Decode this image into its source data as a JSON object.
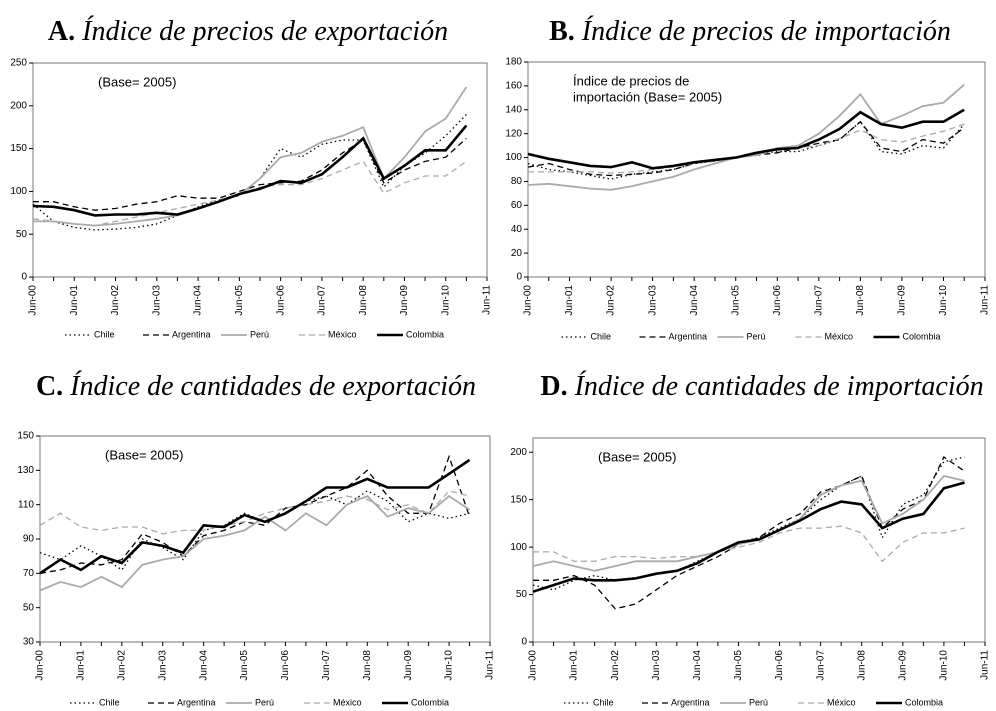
{
  "chart_data": [
    {
      "type": "line",
      "label": "A.",
      "title": "Índice de precios de exportación",
      "annotation": [
        "(Base= 2005)"
      ],
      "categories": [
        "Jun-00",
        null,
        "Jun-01",
        null,
        "Jun-02",
        null,
        "Jun-03",
        null,
        "Jun-04",
        null,
        "Jun-05",
        null,
        "Jun-06",
        null,
        "Jun-07",
        null,
        "Jun-08",
        null,
        "Jun-09",
        null,
        "Jun-10",
        null,
        "Jun-11"
      ],
      "ylim": [
        0,
        250
      ],
      "yticks": [
        0,
        50,
        100,
        150,
        200,
        250
      ],
      "legend": "bottom",
      "series": [
        {
          "name": "Chile",
          "color": "#000000",
          "linestyle": "dotted",
          "values": [
            85,
            65,
            58,
            55,
            56,
            58,
            62,
            72,
            82,
            90,
            95,
            115,
            150,
            140,
            155,
            160,
            160,
            105,
            130,
            145,
            165,
            190,
            null
          ]
        },
        {
          "name": "Argentina",
          "color": "#000000",
          "linestyle": "dashed",
          "values": [
            88,
            88,
            82,
            78,
            80,
            85,
            88,
            95,
            92,
            92,
            100,
            108,
            110,
            112,
            125,
            145,
            160,
            110,
            125,
            135,
            140,
            162,
            null
          ]
        },
        {
          "name": "Perú",
          "color": "#aaaaaa",
          "linestyle": "solid",
          "values": [
            65,
            65,
            62,
            60,
            62,
            65,
            68,
            72,
            80,
            88,
            96,
            115,
            140,
            145,
            158,
            165,
            175,
            115,
            140,
            170,
            185,
            222,
            null
          ]
        },
        {
          "name": "México",
          "color": "#aaaaaa",
          "linestyle": "dashed",
          "values": [
            68,
            65,
            62,
            60,
            65,
            70,
            75,
            80,
            85,
            90,
            97,
            105,
            108,
            108,
            115,
            125,
            135,
            98,
            110,
            118,
            118,
            135,
            null
          ]
        },
        {
          "name": "Colombia",
          "color": "#000000",
          "linestyle": "bold",
          "values": [
            83,
            82,
            78,
            72,
            73,
            73,
            75,
            73,
            80,
            88,
            97,
            103,
            112,
            110,
            120,
            140,
            162,
            115,
            130,
            148,
            148,
            177,
            null
          ]
        }
      ]
    },
    {
      "type": "line",
      "label": "B.",
      "title": "Índice de precios de importación",
      "annotation": [
        "Índice de precios de",
        "importación (Base= 2005)"
      ],
      "categories": [
        "Jun-00",
        null,
        "Jun-01",
        null,
        "Jun-02",
        null,
        "Jun-03",
        null,
        "Jun-04",
        null,
        "Jun-05",
        null,
        "Jun-06",
        null,
        "Jun-07",
        null,
        "Jun-08",
        null,
        "Jun-09",
        null,
        "Jun-10",
        null,
        "Jun-11"
      ],
      "ylim": [
        0,
        180
      ],
      "yticks": [
        0,
        20,
        40,
        60,
        80,
        100,
        120,
        140,
        160,
        180
      ],
      "legend": "bottom",
      "series": [
        {
          "name": "Chile",
          "color": "#000000",
          "linestyle": "dotted",
          "values": [
            95,
            90,
            88,
            85,
            82,
            86,
            88,
            90,
            95,
            97,
            100,
            103,
            105,
            105,
            110,
            115,
            130,
            105,
            103,
            110,
            108,
            128,
            null
          ]
        },
        {
          "name": "Argentina",
          "color": "#000000",
          "linestyle": "dashed",
          "values": [
            92,
            95,
            90,
            86,
            85,
            86,
            87,
            90,
            95,
            98,
            100,
            102,
            104,
            108,
            112,
            115,
            130,
            108,
            105,
            115,
            112,
            125,
            null
          ]
        },
        {
          "name": "Perú",
          "color": "#aaaaaa",
          "linestyle": "solid",
          "values": [
            77,
            78,
            76,
            74,
            73,
            76,
            80,
            84,
            90,
            95,
            100,
            102,
            108,
            110,
            120,
            135,
            153,
            128,
            135,
            143,
            146,
            161,
            null
          ]
        },
        {
          "name": "México",
          "color": "#aaaaaa",
          "linestyle": "dashed",
          "values": [
            88,
            88,
            88,
            88,
            87,
            88,
            90,
            92,
            95,
            97,
            100,
            103,
            106,
            108,
            110,
            116,
            123,
            115,
            113,
            118,
            122,
            128,
            null
          ]
        },
        {
          "name": "Colombia",
          "color": "#000000",
          "linestyle": "bold",
          "values": [
            103,
            99,
            96,
            93,
            92,
            96,
            91,
            93,
            96,
            98,
            100,
            104,
            107,
            108,
            115,
            124,
            138,
            128,
            125,
            130,
            130,
            140,
            null
          ]
        }
      ]
    },
    {
      "type": "line",
      "label": "C.",
      "title": "Índice de cantidades de exportación",
      "annotation": [
        "(Base= 2005)"
      ],
      "categories": [
        "Jun-00",
        null,
        "Jun-01",
        null,
        "Jun-02",
        null,
        "Jun-03",
        null,
        "Jun-04",
        null,
        "Jun-05",
        null,
        "Jun-06",
        null,
        "Jun-07",
        null,
        "Jun-08",
        null,
        "Jun-09",
        null,
        "Jun-10",
        null,
        "Jun-11"
      ],
      "ylim": [
        30,
        150
      ],
      "yticks": [
        30,
        50,
        70,
        90,
        110,
        130,
        150
      ],
      "legend": "bottom",
      "series": [
        {
          "name": "Chile",
          "color": "#000000",
          "linestyle": "dotted",
          "values": [
            82,
            78,
            86,
            80,
            72,
            90,
            85,
            78,
            95,
            98,
            105,
            100,
            105,
            112,
            115,
            110,
            118,
            112,
            100,
            105,
            102,
            105,
            null
          ]
        },
        {
          "name": "Argentina",
          "color": "#000000",
          "linestyle": "dashed",
          "values": [
            70,
            72,
            76,
            75,
            78,
            93,
            88,
            80,
            92,
            95,
            100,
            98,
            108,
            110,
            115,
            120,
            130,
            115,
            105,
            105,
            138,
            103,
            null
          ]
        },
        {
          "name": "Perú",
          "color": "#aaaaaa",
          "linestyle": "solid",
          "values": [
            60,
            65,
            62,
            68,
            62,
            75,
            78,
            80,
            90,
            92,
            95,
            103,
            95,
            105,
            98,
            110,
            115,
            103,
            108,
            105,
            115,
            107,
            null
          ]
        },
        {
          "name": "México",
          "color": "#aaaaaa",
          "linestyle": "dashed",
          "values": [
            98,
            105,
            97,
            95,
            97,
            97,
            93,
            95,
            95,
            98,
            100,
            105,
            108,
            110,
            112,
            115,
            113,
            107,
            110,
            105,
            118,
            115,
            null
          ]
        },
        {
          "name": "Colombia",
          "color": "#000000",
          "linestyle": "bold",
          "values": [
            70,
            78,
            72,
            80,
            76,
            88,
            86,
            82,
            98,
            97,
            104,
            100,
            105,
            112,
            120,
            120,
            125,
            120,
            120,
            120,
            128,
            136,
            null
          ]
        }
      ]
    },
    {
      "type": "line",
      "label": "D.",
      "title": "Índice de cantidades de importación",
      "annotation": [
        "(Base= 2005)"
      ],
      "categories": [
        "Jun-00",
        null,
        "Jun-01",
        null,
        "Jun-02",
        null,
        "Jun-03",
        null,
        "Jun-04",
        null,
        "Jun-05",
        null,
        "Jun-06",
        null,
        "Jun-07",
        null,
        "Jun-08",
        null,
        "Jun-09",
        null,
        "Jun-10",
        null,
        "Jun-11"
      ],
      "ylim": [
        0,
        215
      ],
      "yticks": [
        0,
        50,
        100,
        150,
        200
      ],
      "legend": "bottom",
      "series": [
        {
          "name": "Chile",
          "color": "#000000",
          "linestyle": "dotted",
          "values": [
            60,
            55,
            65,
            70,
            65,
            68,
            72,
            75,
            85,
            95,
            105,
            110,
            120,
            130,
            150,
            165,
            175,
            110,
            145,
            155,
            190,
            195,
            null
          ]
        },
        {
          "name": "Argentina",
          "color": "#000000",
          "linestyle": "dashed",
          "values": [
            65,
            65,
            70,
            60,
            35,
            40,
            55,
            70,
            80,
            90,
            103,
            110,
            125,
            135,
            158,
            165,
            175,
            120,
            140,
            150,
            195,
            180,
            null
          ]
        },
        {
          "name": "Perú",
          "color": "#aaaaaa",
          "linestyle": "solid",
          "values": [
            80,
            85,
            80,
            75,
            80,
            85,
            85,
            85,
            90,
            95,
            103,
            108,
            118,
            130,
            155,
            165,
            170,
            125,
            135,
            150,
            175,
            170,
            null
          ]
        },
        {
          "name": "México",
          "color": "#aaaaaa",
          "linestyle": "dashed",
          "values": [
            95,
            95,
            85,
            85,
            90,
            90,
            88,
            90,
            90,
            95,
            100,
            105,
            115,
            120,
            120,
            122,
            115,
            85,
            105,
            115,
            115,
            120,
            null
          ]
        },
        {
          "name": "Colombia",
          "color": "#000000",
          "linestyle": "bold",
          "values": [
            53,
            60,
            67,
            65,
            65,
            67,
            72,
            75,
            83,
            95,
            105,
            108,
            118,
            128,
            140,
            148,
            145,
            120,
            130,
            135,
            162,
            168,
            null
          ]
        }
      ]
    }
  ]
}
